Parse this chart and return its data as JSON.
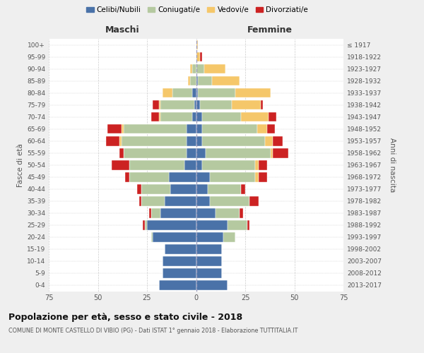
{
  "age_groups": [
    "0-4",
    "5-9",
    "10-14",
    "15-19",
    "20-24",
    "25-29",
    "30-34",
    "35-39",
    "40-44",
    "45-49",
    "50-54",
    "55-59",
    "60-64",
    "65-69",
    "70-74",
    "75-79",
    "80-84",
    "85-89",
    "90-94",
    "95-99",
    "100+"
  ],
  "birth_years": [
    "2013-2017",
    "2008-2012",
    "2003-2007",
    "1998-2002",
    "1993-1997",
    "1988-1992",
    "1983-1987",
    "1978-1982",
    "1973-1977",
    "1968-1972",
    "1963-1967",
    "1958-1962",
    "1953-1957",
    "1948-1952",
    "1943-1947",
    "1938-1942",
    "1933-1937",
    "1928-1932",
    "1923-1927",
    "1918-1922",
    "≤ 1917"
  ],
  "maschi": {
    "celibi": [
      19,
      17,
      17,
      16,
      22,
      25,
      18,
      16,
      13,
      14,
      6,
      5,
      5,
      5,
      2,
      1,
      2,
      0,
      0,
      0,
      0
    ],
    "coniugati": [
      0,
      0,
      0,
      0,
      1,
      1,
      5,
      12,
      15,
      20,
      28,
      32,
      33,
      32,
      16,
      17,
      10,
      3,
      2,
      0,
      0
    ],
    "vedovi": [
      0,
      0,
      0,
      0,
      0,
      0,
      0,
      0,
      0,
      0,
      0,
      0,
      1,
      1,
      1,
      1,
      5,
      1,
      1,
      0,
      0
    ],
    "divorziati": [
      0,
      0,
      0,
      0,
      0,
      1,
      1,
      1,
      2,
      2,
      9,
      2,
      7,
      7,
      4,
      3,
      0,
      0,
      0,
      0,
      0
    ]
  },
  "femmine": {
    "nubili": [
      16,
      13,
      13,
      13,
      14,
      16,
      10,
      7,
      6,
      7,
      3,
      5,
      3,
      3,
      3,
      2,
      1,
      1,
      0,
      0,
      0
    ],
    "coniugate": [
      0,
      0,
      0,
      0,
      6,
      10,
      12,
      20,
      17,
      23,
      27,
      33,
      32,
      28,
      20,
      16,
      19,
      7,
      4,
      0,
      0
    ],
    "vedove": [
      0,
      0,
      0,
      0,
      0,
      0,
      0,
      0,
      0,
      2,
      2,
      1,
      4,
      5,
      14,
      15,
      18,
      14,
      11,
      2,
      1
    ],
    "divorziate": [
      0,
      0,
      0,
      0,
      0,
      1,
      2,
      5,
      2,
      4,
      4,
      8,
      5,
      4,
      4,
      1,
      0,
      0,
      0,
      1,
      0
    ]
  },
  "colors": {
    "celibi": "#4a72a8",
    "coniugati": "#b5c9a0",
    "vedovi": "#f5c76a",
    "divorziati": "#cc2222"
  },
  "legend_labels": [
    "Celibi/Nubili",
    "Coniugati/e",
    "Vedovi/e",
    "Divorziati/e"
  ],
  "title": "Popolazione per età, sesso e stato civile - 2018",
  "subtitle": "COMUNE DI MONTE CASTELLO DI VIBIO (PG) - Dati ISTAT 1° gennaio 2018 - Elaborazione TUTTITALIA.IT",
  "xlabel_left": "Maschi",
  "xlabel_right": "Femmine",
  "ylabel_left": "Fasce di età",
  "ylabel_right": "Anni di nascita",
  "xlim": 75,
  "bg_color": "#efefef",
  "plot_bg": "#ffffff",
  "grid_color": "#cccccc"
}
